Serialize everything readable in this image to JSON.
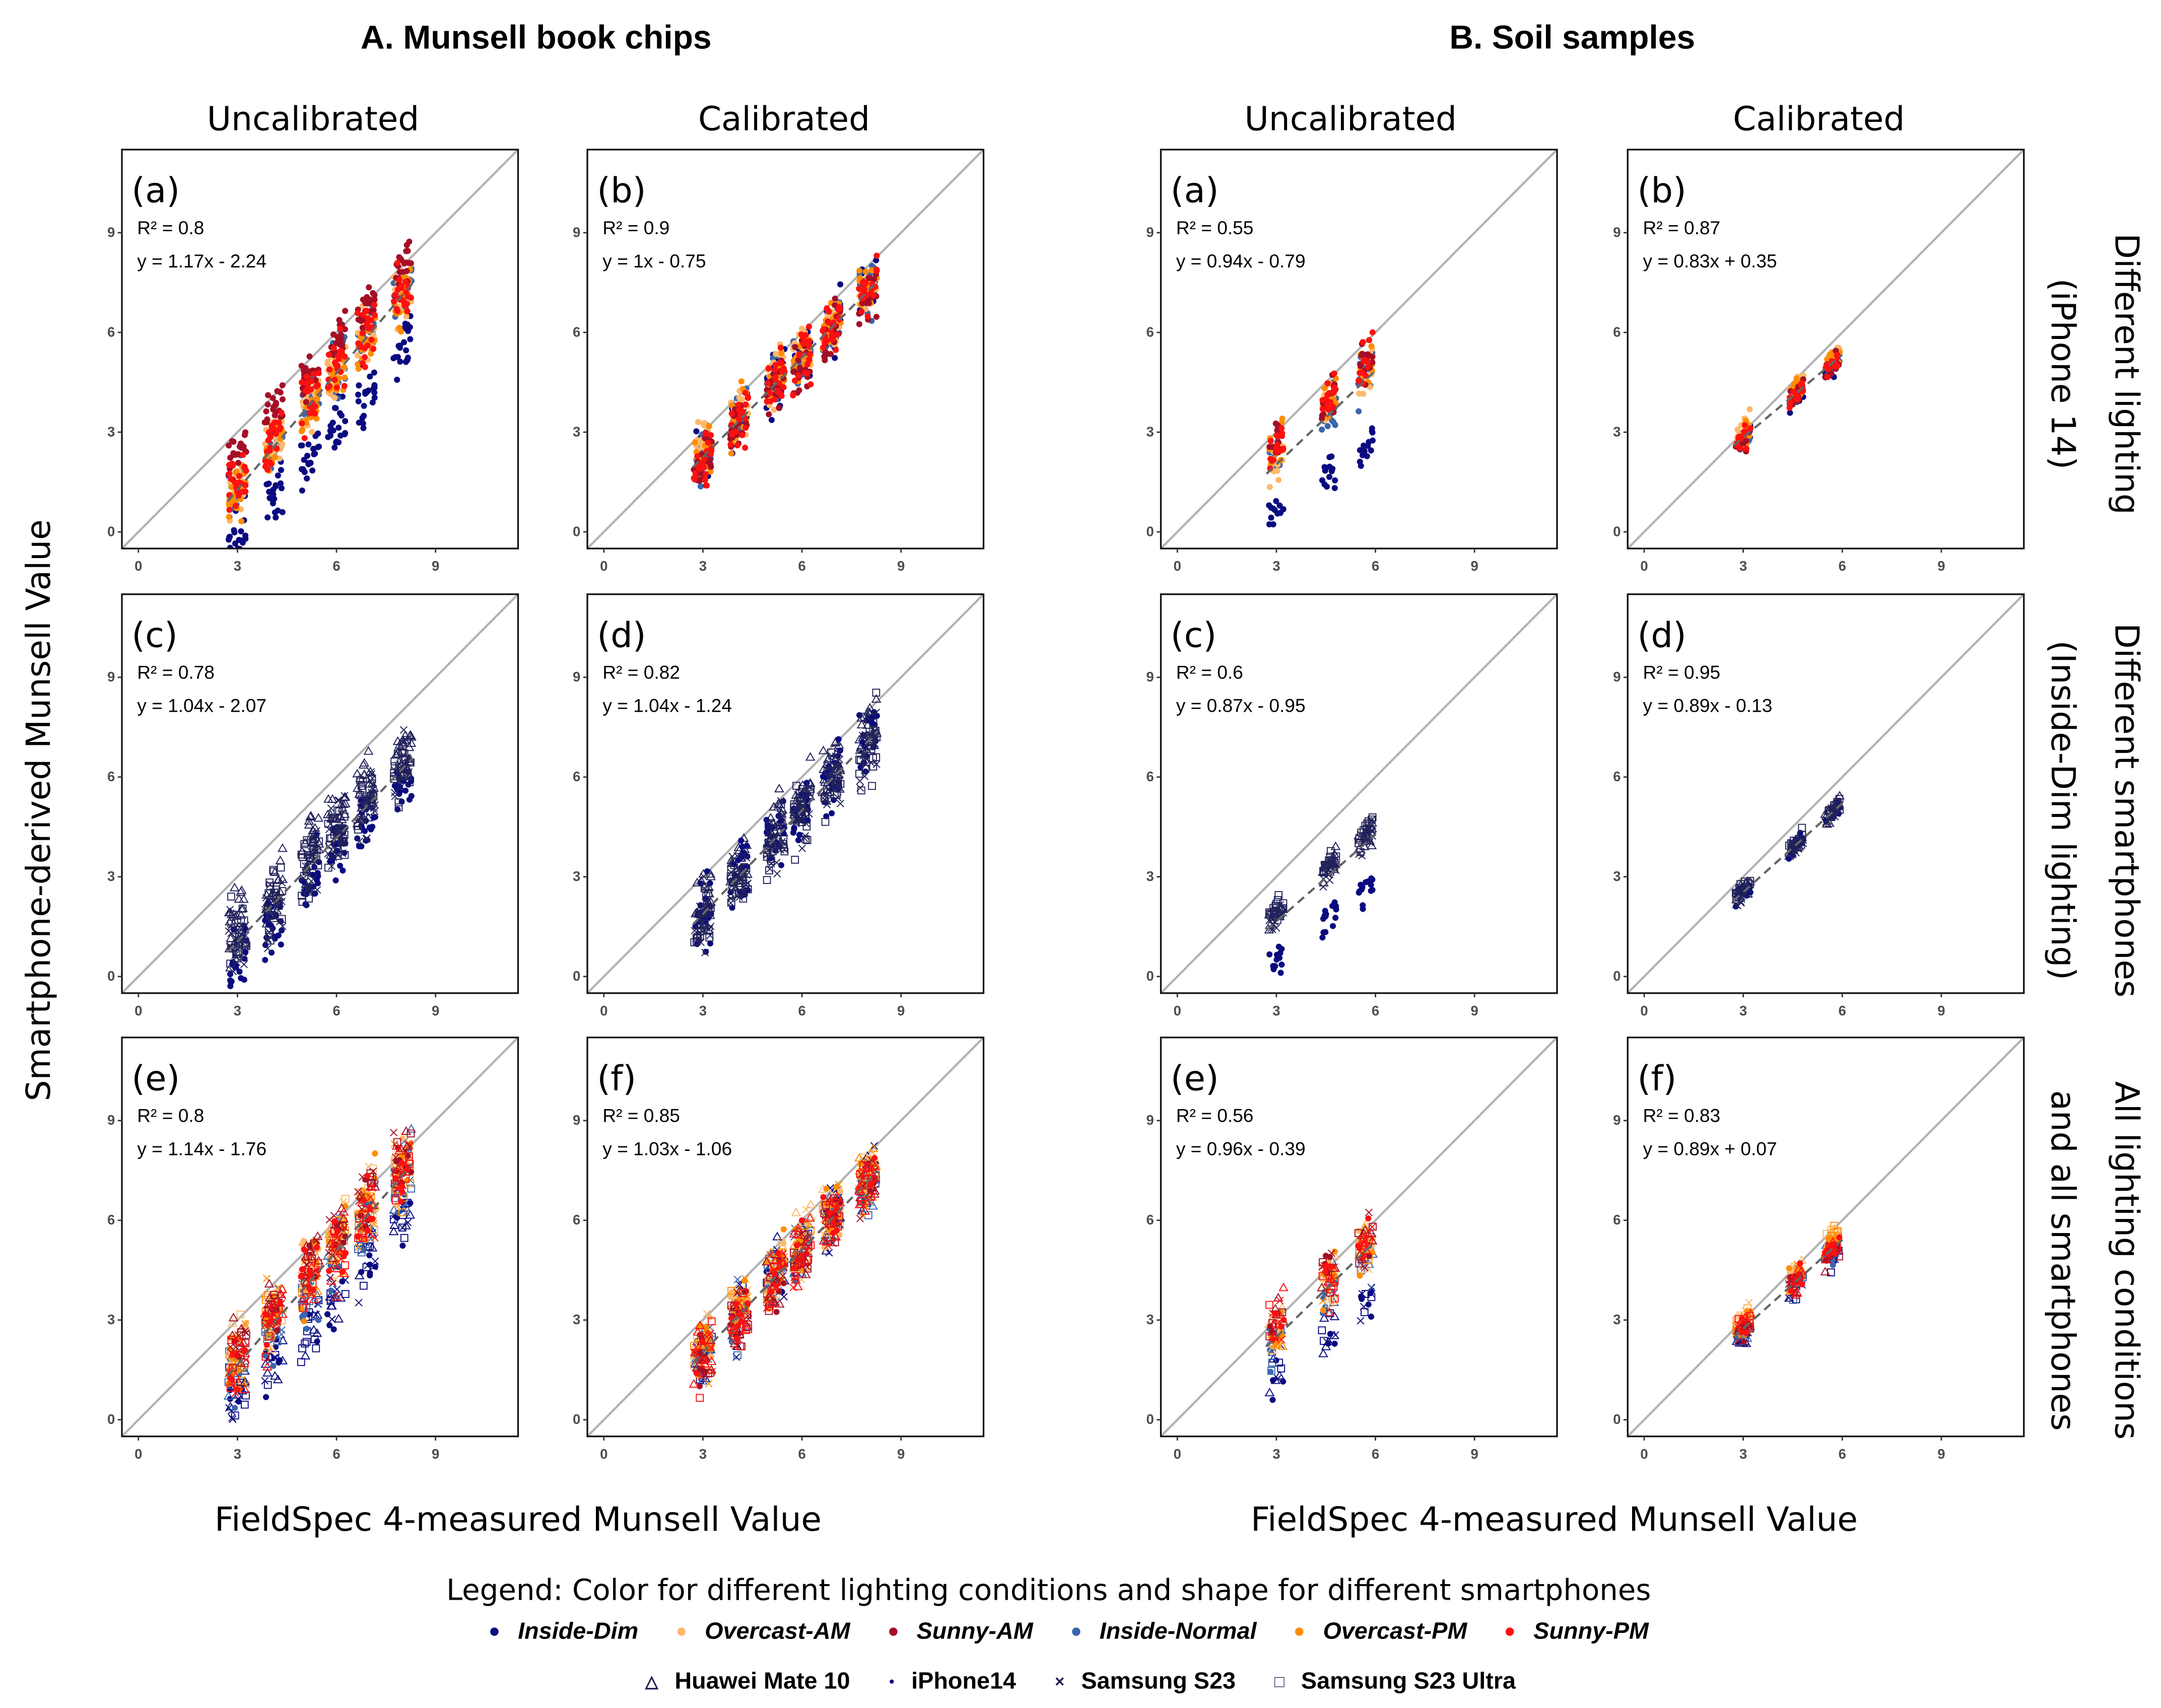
{
  "group_titles": {
    "A": "A. Munsell book chips",
    "B": "B. Soil samples"
  },
  "column_headers": {
    "uncal": "Uncalibrated",
    "cal": "Calibrated"
  },
  "row_labels": [
    {
      "line1": "Different lighting",
      "line2": "(iPhone 14)"
    },
    {
      "line1": "Different smartphones",
      "line2": "(Inside-Dim lighting)"
    },
    {
      "line1": "All lighting conditions",
      "line2": "and all smartphones"
    }
  ],
  "y_axis_label": "Smartphone-derived Munsell Value",
  "x_axis_label": "FieldSpec 4-measured Munsell Value",
  "legend": {
    "title": "Legend: Color for different lighting conditions and shape for different smartphones",
    "conditions": [
      {
        "name": "Inside-Dim",
        "color": "#0a0a80"
      },
      {
        "name": "Overcast-AM",
        "color": "#fdb96b"
      },
      {
        "name": "Sunny-AM",
        "color": "#a50f26"
      },
      {
        "name": "Inside-Normal",
        "color": "#3a66ad"
      },
      {
        "name": "Overcast-PM",
        "color": "#ff8c00"
      },
      {
        "name": "Sunny-PM",
        "color": "#ff1010"
      }
    ],
    "phones": [
      {
        "name": "Huawei Mate 10",
        "shape": "triangle",
        "glyph": "△"
      },
      {
        "name": "iPhone14",
        "shape": "dot",
        "glyph": "●"
      },
      {
        "name": "Samsung S23",
        "shape": "cross",
        "glyph": "×"
      },
      {
        "name": "Samsung S23 Ultra",
        "shape": "square",
        "glyph": "□"
      }
    ]
  },
  "chart_data": [
    {
      "type": "scatter",
      "group": "A",
      "col": "uncal",
      "row": 0,
      "label": "(a)",
      "r2": "R² = 0.8",
      "equation": "y = 1.17x - 2.24",
      "slope": 1.17,
      "intercept": -2.24,
      "xlim": [
        -0.5,
        11.5
      ],
      "ylim": [
        -0.5,
        11.5
      ],
      "xticks": [
        0,
        3,
        6,
        9
      ],
      "yticks": [
        0,
        3,
        6,
        9
      ],
      "x_clusters": [
        3,
        4.1,
        5.2,
        6,
        6.9,
        8
      ],
      "series": [
        {
          "condition": "Inside-Dim",
          "phone": "iPhone14",
          "slope": 1.1,
          "intercept": -3.4,
          "spread": 0.45
        },
        {
          "condition": "Inside-Normal",
          "phone": "iPhone14",
          "slope": 1.17,
          "intercept": -2.1,
          "spread": 0.4
        },
        {
          "condition": "Overcast-AM",
          "phone": "iPhone14",
          "slope": 1.15,
          "intercept": -2.0,
          "spread": 0.4
        },
        {
          "condition": "Overcast-PM",
          "phone": "iPhone14",
          "slope": 1.15,
          "intercept": -2.2,
          "spread": 0.4
        },
        {
          "condition": "Sunny-AM",
          "phone": "iPhone14",
          "slope": 1.12,
          "intercept": -1.0,
          "spread": 0.3
        },
        {
          "condition": "Sunny-PM",
          "phone": "iPhone14",
          "slope": 1.17,
          "intercept": -2.1,
          "spread": 0.4
        }
      ]
    },
    {
      "type": "scatter",
      "group": "A",
      "col": "cal",
      "row": 0,
      "label": "(b)",
      "r2": "R² = 0.9",
      "equation": "y = 1x - 0.75",
      "slope": 1.0,
      "intercept": -0.75,
      "xlim": [
        -0.5,
        11.5
      ],
      "ylim": [
        -0.5,
        11.5
      ],
      "xticks": [
        0,
        3,
        6,
        9
      ],
      "yticks": [
        0,
        3,
        6,
        9
      ],
      "x_clusters": [
        3,
        4.1,
        5.2,
        6,
        6.9,
        8
      ],
      "series": [
        {
          "condition": "Inside-Dim",
          "phone": "iPhone14",
          "slope": 1.02,
          "intercept": -0.8,
          "spread": 0.4
        },
        {
          "condition": "Inside-Normal",
          "phone": "iPhone14",
          "slope": 1.0,
          "intercept": -0.7,
          "spread": 0.35
        },
        {
          "condition": "Overcast-AM",
          "phone": "iPhone14",
          "slope": 0.95,
          "intercept": -0.3,
          "spread": 0.35
        },
        {
          "condition": "Overcast-PM",
          "phone": "iPhone14",
          "slope": 1.0,
          "intercept": -0.7,
          "spread": 0.35
        },
        {
          "condition": "Sunny-AM",
          "phone": "iPhone14",
          "slope": 1.0,
          "intercept": -0.9,
          "spread": 0.4
        },
        {
          "condition": "Sunny-PM",
          "phone": "iPhone14",
          "slope": 1.0,
          "intercept": -0.8,
          "spread": 0.4
        }
      ]
    },
    {
      "type": "scatter",
      "group": "B",
      "col": "uncal",
      "row": 0,
      "label": "(a)",
      "r2": "R² = 0.55",
      "equation": "y = 0.94x - 0.79",
      "slope": 0.94,
      "intercept": -0.79,
      "xlim": [
        -0.5,
        11.5
      ],
      "ylim": [
        -0.5,
        11.5
      ],
      "xticks": [
        0,
        3,
        6,
        9
      ],
      "yticks": [
        0,
        3,
        6,
        9
      ],
      "x_clusters": [
        3,
        4.6,
        5.7
      ],
      "series": [
        {
          "condition": "Inside-Dim",
          "phone": "iPhone14",
          "slope": 0.72,
          "intercept": -1.5,
          "spread": 0.25
        },
        {
          "condition": "Inside-Normal",
          "phone": "iPhone14",
          "slope": 0.94,
          "intercept": -0.6,
          "spread": 0.35
        },
        {
          "condition": "Overcast-AM",
          "phone": "iPhone14",
          "slope": 0.94,
          "intercept": -0.5,
          "spread": 0.35
        },
        {
          "condition": "Overcast-PM",
          "phone": "iPhone14",
          "slope": 0.94,
          "intercept": -0.4,
          "spread": 0.35
        },
        {
          "condition": "Sunny-AM",
          "phone": "iPhone14",
          "slope": 0.94,
          "intercept": -0.2,
          "spread": 0.35
        },
        {
          "condition": "Sunny-PM",
          "phone": "iPhone14",
          "slope": 0.94,
          "intercept": -0.3,
          "spread": 0.35
        }
      ]
    },
    {
      "type": "scatter",
      "group": "B",
      "col": "cal",
      "row": 0,
      "label": "(b)",
      "r2": "R² = 0.87",
      "equation": "y = 0.83x + 0.35",
      "slope": 0.83,
      "intercept": 0.35,
      "xlim": [
        -0.5,
        11.5
      ],
      "ylim": [
        -0.5,
        11.5
      ],
      "xticks": [
        0,
        3,
        6,
        9
      ],
      "yticks": [
        0,
        3,
        6,
        9
      ],
      "x_clusters": [
        3,
        4.6,
        5.7
      ],
      "series": [
        {
          "condition": "Inside-Dim",
          "phone": "iPhone14",
          "slope": 0.83,
          "intercept": 0.2,
          "spread": 0.15
        },
        {
          "condition": "Inside-Normal",
          "phone": "iPhone14",
          "slope": 0.83,
          "intercept": 0.3,
          "spread": 0.15
        },
        {
          "condition": "Overcast-AM",
          "phone": "iPhone14",
          "slope": 0.83,
          "intercept": 0.6,
          "spread": 0.15
        },
        {
          "condition": "Overcast-PM",
          "phone": "iPhone14",
          "slope": 0.83,
          "intercept": 0.5,
          "spread": 0.15
        },
        {
          "condition": "Sunny-AM",
          "phone": "iPhone14",
          "slope": 0.83,
          "intercept": 0.3,
          "spread": 0.15
        },
        {
          "condition": "Sunny-PM",
          "phone": "iPhone14",
          "slope": 0.83,
          "intercept": 0.35,
          "spread": 0.15
        }
      ]
    },
    {
      "type": "scatter",
      "group": "A",
      "col": "uncal",
      "row": 1,
      "label": "(c)",
      "r2": "R² = 0.78",
      "equation": "y = 1.04x - 2.07",
      "slope": 1.04,
      "intercept": -2.07,
      "xlim": [
        -0.5,
        11.5
      ],
      "ylim": [
        -0.5,
        11.5
      ],
      "xticks": [
        0,
        3,
        6,
        9
      ],
      "yticks": [
        0,
        3,
        6,
        9
      ],
      "x_clusters": [
        3,
        4.1,
        5.2,
        6,
        6.9,
        8
      ],
      "series": [
        {
          "condition": "Inside-Dim",
          "phone": "Huawei Mate 10",
          "slope": 1.04,
          "intercept": -1.5,
          "spread": 0.5
        },
        {
          "condition": "Inside-Dim",
          "phone": "iPhone14",
          "slope": 1.04,
          "intercept": -2.6,
          "spread": 0.5
        },
        {
          "condition": "Inside-Dim",
          "phone": "Samsung S23",
          "slope": 1.04,
          "intercept": -2.1,
          "spread": 0.5
        },
        {
          "condition": "Inside-Dim",
          "phone": "Samsung S23 Ultra",
          "slope": 1.04,
          "intercept": -1.9,
          "spread": 0.5
        }
      ]
    },
    {
      "type": "scatter",
      "group": "A",
      "col": "cal",
      "row": 1,
      "label": "(d)",
      "r2": "R² = 0.82",
      "equation": "y = 1.04x - 1.24",
      "slope": 1.04,
      "intercept": -1.24,
      "xlim": [
        -0.5,
        11.5
      ],
      "ylim": [
        -0.5,
        11.5
      ],
      "xticks": [
        0,
        3,
        6,
        9
      ],
      "yticks": [
        0,
        3,
        6,
        9
      ],
      "x_clusters": [
        3,
        4.1,
        5.2,
        6,
        6.9,
        8
      ],
      "series": [
        {
          "condition": "Inside-Dim",
          "phone": "Huawei Mate 10",
          "slope": 1.04,
          "intercept": -0.9,
          "spread": 0.45
        },
        {
          "condition": "Inside-Dim",
          "phone": "iPhone14",
          "slope": 1.04,
          "intercept": -1.3,
          "spread": 0.45
        },
        {
          "condition": "Inside-Dim",
          "phone": "Samsung S23",
          "slope": 1.04,
          "intercept": -1.3,
          "spread": 0.5
        },
        {
          "condition": "Inside-Dim",
          "phone": "Samsung S23 Ultra",
          "slope": 1.04,
          "intercept": -1.4,
          "spread": 0.5
        }
      ]
    },
    {
      "type": "scatter",
      "group": "B",
      "col": "uncal",
      "row": 1,
      "label": "(c)",
      "r2": "R² = 0.6",
      "equation": "y = 0.87x - 0.95",
      "slope": 0.87,
      "intercept": -0.95,
      "xlim": [
        -0.5,
        11.5
      ],
      "ylim": [
        -0.5,
        11.5
      ],
      "xticks": [
        0,
        3,
        6,
        9
      ],
      "yticks": [
        0,
        3,
        6,
        9
      ],
      "x_clusters": [
        3,
        4.6,
        5.7
      ],
      "series": [
        {
          "condition": "Inside-Dim",
          "phone": "Huawei Mate 10",
          "slope": 0.87,
          "intercept": -0.7,
          "spread": 0.2
        },
        {
          "condition": "Inside-Dim",
          "phone": "iPhone14",
          "slope": 0.72,
          "intercept": -1.5,
          "spread": 0.25
        },
        {
          "condition": "Inside-Dim",
          "phone": "Samsung S23",
          "slope": 0.87,
          "intercept": -0.8,
          "spread": 0.2
        },
        {
          "condition": "Inside-Dim",
          "phone": "Samsung S23 Ultra",
          "slope": 0.87,
          "intercept": -0.6,
          "spread": 0.2
        }
      ]
    },
    {
      "type": "scatter",
      "group": "B",
      "col": "cal",
      "row": 1,
      "label": "(d)",
      "r2": "R² = 0.95",
      "equation": "y = 0.89x - 0.13",
      "slope": 0.89,
      "intercept": -0.13,
      "xlim": [
        -0.5,
        11.5
      ],
      "ylim": [
        -0.5,
        11.5
      ],
      "xticks": [
        0,
        3,
        6,
        9
      ],
      "yticks": [
        0,
        3,
        6,
        9
      ],
      "x_clusters": [
        3,
        4.6,
        5.7
      ],
      "series": [
        {
          "condition": "Inside-Dim",
          "phone": "Huawei Mate 10",
          "slope": 0.89,
          "intercept": -0.1,
          "spread": 0.12
        },
        {
          "condition": "Inside-Dim",
          "phone": "iPhone14",
          "slope": 0.89,
          "intercept": -0.15,
          "spread": 0.12
        },
        {
          "condition": "Inside-Dim",
          "phone": "Samsung S23",
          "slope": 0.89,
          "intercept": -0.2,
          "spread": 0.12
        },
        {
          "condition": "Inside-Dim",
          "phone": "Samsung S23 Ultra",
          "slope": 0.89,
          "intercept": -0.05,
          "spread": 0.12
        }
      ]
    },
    {
      "type": "scatter",
      "group": "A",
      "col": "uncal",
      "row": 2,
      "label": "(e)",
      "r2": "R² = 0.8",
      "equation": "y = 1.14x - 1.76",
      "slope": 1.14,
      "intercept": -1.76,
      "xlim": [
        -0.5,
        11.5
      ],
      "ylim": [
        -0.5,
        11.5
      ],
      "xticks": [
        0,
        3,
        6,
        9
      ],
      "yticks": [
        0,
        3,
        6,
        9
      ],
      "x_clusters": [
        3,
        4.1,
        5.2,
        6,
        6.9,
        8
      ],
      "series": [
        {
          "condition": "Inside-Dim",
          "phone": "all",
          "slope": 1.1,
          "intercept": -2.8,
          "spread": 0.5
        },
        {
          "condition": "Inside-Normal",
          "phone": "all",
          "slope": 1.14,
          "intercept": -1.9,
          "spread": 0.5
        },
        {
          "condition": "Overcast-AM",
          "phone": "all",
          "slope": 1.14,
          "intercept": -1.4,
          "spread": 0.5
        },
        {
          "condition": "Overcast-PM",
          "phone": "all",
          "slope": 1.14,
          "intercept": -1.6,
          "spread": 0.5
        },
        {
          "condition": "Sunny-AM",
          "phone": "all",
          "slope": 1.12,
          "intercept": -1.0,
          "spread": 0.45
        },
        {
          "condition": "Sunny-PM",
          "phone": "all",
          "slope": 1.14,
          "intercept": -1.7,
          "spread": 0.5
        }
      ]
    },
    {
      "type": "scatter",
      "group": "A",
      "col": "cal",
      "row": 2,
      "label": "(f)",
      "r2": "R² = 0.85",
      "equation": "y = 1.03x - 1.06",
      "slope": 1.03,
      "intercept": -1.06,
      "xlim": [
        -0.5,
        11.5
      ],
      "ylim": [
        -0.5,
        11.5
      ],
      "xticks": [
        0,
        3,
        6,
        9
      ],
      "yticks": [
        0,
        3,
        6,
        9
      ],
      "x_clusters": [
        3,
        4.1,
        5.2,
        6,
        6.9,
        8
      ],
      "series": [
        {
          "condition": "Inside-Dim",
          "phone": "all",
          "slope": 1.05,
          "intercept": -1.2,
          "spread": 0.45
        },
        {
          "condition": "Inside-Normal",
          "phone": "all",
          "slope": 1.03,
          "intercept": -1.1,
          "spread": 0.45
        },
        {
          "condition": "Overcast-AM",
          "phone": "all",
          "slope": 0.98,
          "intercept": -0.6,
          "spread": 0.5
        },
        {
          "condition": "Overcast-PM",
          "phone": "all",
          "slope": 1.03,
          "intercept": -1.0,
          "spread": 0.45
        },
        {
          "condition": "Sunny-AM",
          "phone": "all",
          "slope": 1.03,
          "intercept": -1.2,
          "spread": 0.45
        },
        {
          "condition": "Sunny-PM",
          "phone": "all",
          "slope": 1.03,
          "intercept": -1.1,
          "spread": 0.45
        }
      ]
    },
    {
      "type": "scatter",
      "group": "B",
      "col": "uncal",
      "row": 2,
      "label": "(e)",
      "r2": "R² = 0.56",
      "equation": "y = 0.96x - 0.39",
      "slope": 0.96,
      "intercept": -0.39,
      "xlim": [
        -0.5,
        11.5
      ],
      "ylim": [
        -0.5,
        11.5
      ],
      "xticks": [
        0,
        3,
        6,
        9
      ],
      "yticks": [
        0,
        3,
        6,
        9
      ],
      "x_clusters": [
        3,
        4.6,
        5.7
      ],
      "series": [
        {
          "condition": "Inside-Dim",
          "phone": "all",
          "slope": 0.8,
          "intercept": -1.0,
          "spread": 0.4
        },
        {
          "condition": "Inside-Normal",
          "phone": "all",
          "slope": 0.96,
          "intercept": -0.5,
          "spread": 0.4
        },
        {
          "condition": "Overcast-AM",
          "phone": "all",
          "slope": 0.96,
          "intercept": -0.2,
          "spread": 0.4
        },
        {
          "condition": "Overcast-PM",
          "phone": "all",
          "slope": 0.96,
          "intercept": -0.3,
          "spread": 0.4
        },
        {
          "condition": "Sunny-AM",
          "phone": "all",
          "slope": 0.96,
          "intercept": 0.1,
          "spread": 0.4
        },
        {
          "condition": "Sunny-PM",
          "phone": "all",
          "slope": 0.96,
          "intercept": -0.1,
          "spread": 0.4
        }
      ]
    },
    {
      "type": "scatter",
      "group": "B",
      "col": "cal",
      "row": 2,
      "label": "(f)",
      "r2": "R² = 0.83",
      "equation": "y = 0.89x + 0.07",
      "slope": 0.89,
      "intercept": 0.07,
      "xlim": [
        -0.5,
        11.5
      ],
      "ylim": [
        -0.5,
        11.5
      ],
      "xticks": [
        0,
        3,
        6,
        9
      ],
      "yticks": [
        0,
        3,
        6,
        9
      ],
      "x_clusters": [
        3,
        4.6,
        5.7
      ],
      "series": [
        {
          "condition": "Inside-Dim",
          "phone": "all",
          "slope": 0.89,
          "intercept": -0.1,
          "spread": 0.2
        },
        {
          "condition": "Inside-Normal",
          "phone": "all",
          "slope": 0.89,
          "intercept": 0.0,
          "spread": 0.2
        },
        {
          "condition": "Overcast-AM",
          "phone": "all",
          "slope": 0.89,
          "intercept": 0.4,
          "spread": 0.2
        },
        {
          "condition": "Overcast-PM",
          "phone": "all",
          "slope": 0.89,
          "intercept": 0.3,
          "spread": 0.2
        },
        {
          "condition": "Sunny-AM",
          "phone": "all",
          "slope": 0.89,
          "intercept": 0.05,
          "spread": 0.2
        },
        {
          "condition": "Sunny-PM",
          "phone": "all",
          "slope": 0.89,
          "intercept": 0.1,
          "spread": 0.2
        }
      ]
    }
  ]
}
